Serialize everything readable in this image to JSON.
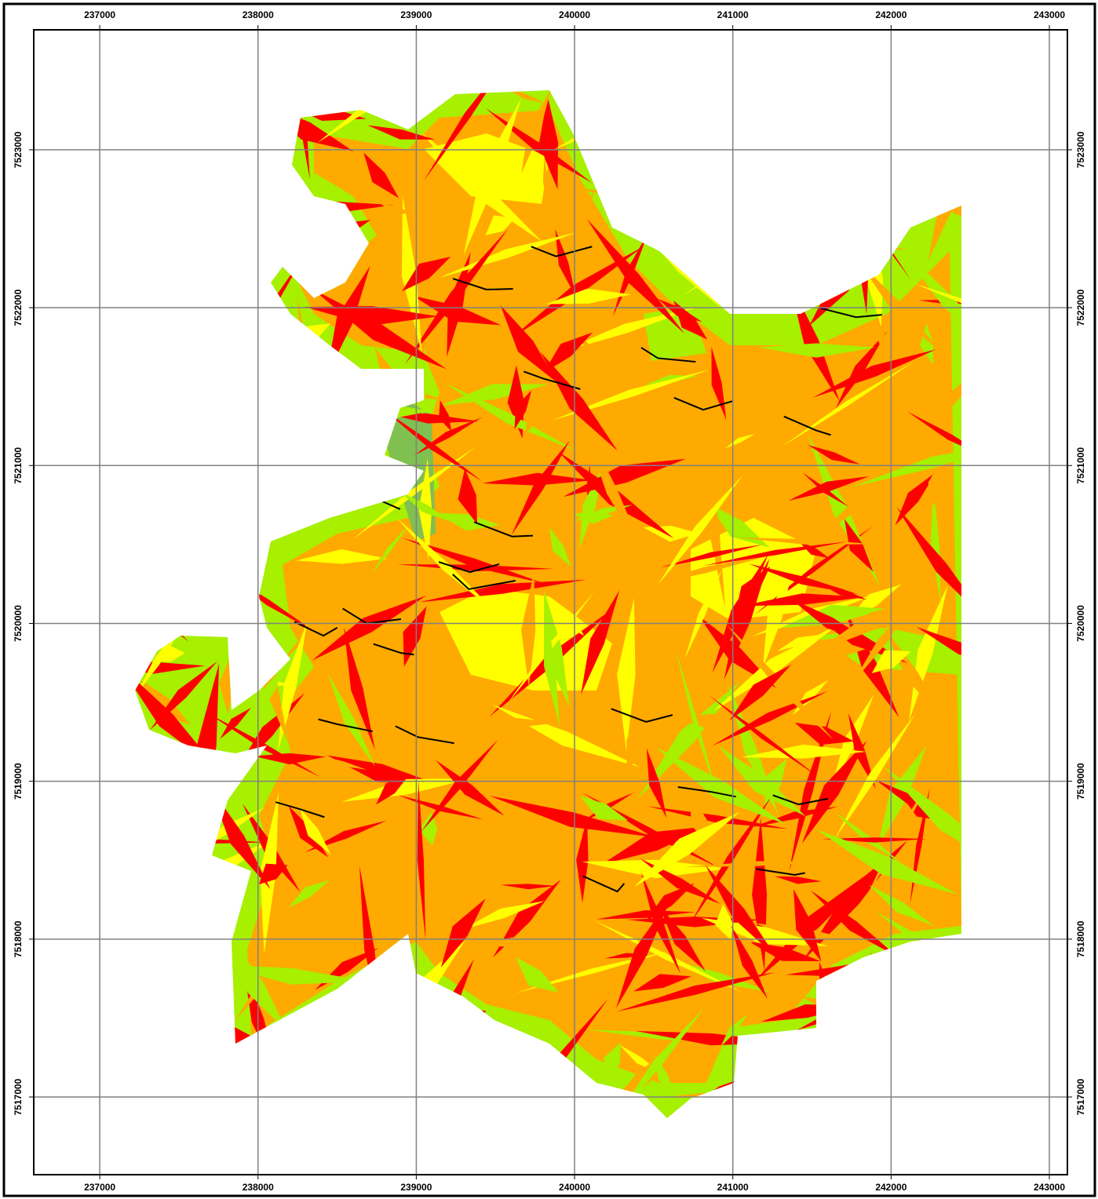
{
  "map": {
    "xlim": [
      236583,
      243114
    ],
    "ylim": [
      7516508,
      7523760
    ],
    "xticks": [
      237000,
      238000,
      239000,
      240000,
      241000,
      242000,
      243000
    ],
    "yticks": [
      7517000,
      7518000,
      7519000,
      7520000,
      7521000,
      7522000,
      7523000
    ]
  }
}
